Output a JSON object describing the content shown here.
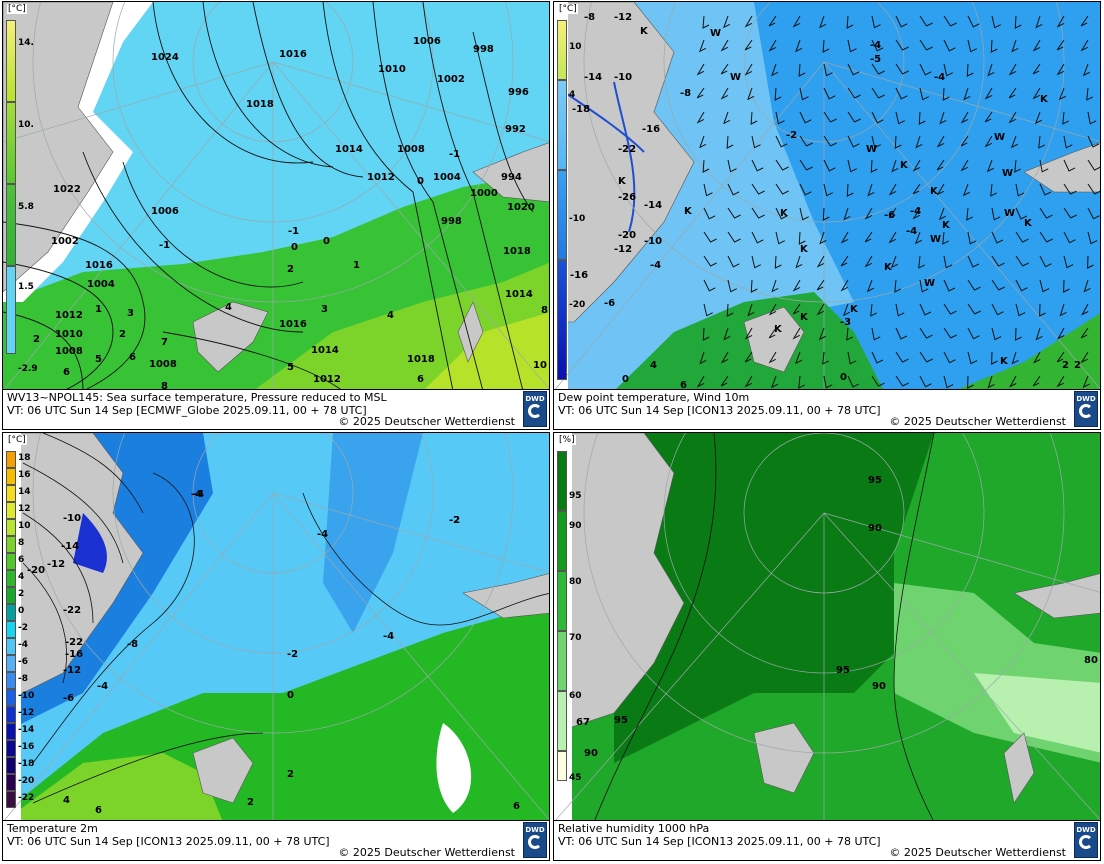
{
  "panels": [
    {
      "caption_line1": "WV13~NPOL145: Sea surface temperature,  Pressure reduced to MSL",
      "caption_line2": "VT: 06 UTC Sun  14 Sep [ECMWF_Globe 2025.09.11, 00 + 78 UTC]",
      "copyright": "© 2025 Deutscher Wetterdienst",
      "unit": "[°C]",
      "legend_labels": [
        "14.",
        "10.",
        "5.8",
        "1.5",
        "-2.9"
      ],
      "pressure_labels": [
        "1024",
        "1016",
        "1006",
        "998",
        "1010",
        "1002",
        "1018",
        "996",
        "992",
        "1014",
        "1008",
        "1012",
        "994",
        "1004",
        "1000",
        "1022",
        "1006",
        "998",
        "1020",
        "1002",
        "1018",
        "1016",
        "1004",
        "1014",
        "1012",
        "1016",
        "1010",
        "1014",
        "1008",
        "1018",
        "1012",
        "1008"
      ],
      "sst_labels": [
        "-1",
        "0",
        "-1",
        "0",
        "-1",
        "0",
        "1",
        "2",
        "1",
        "2",
        "3",
        "4",
        "4",
        "3",
        "5",
        "7",
        "6",
        "8",
        "10",
        "8",
        "6",
        "2",
        "5",
        "6"
      ]
    },
    {
      "caption_line1": "Dew point temperature, Wind 10m",
      "caption_line2": "VT: 06 UTC Sun  14 Sep [ICON13 2025.09.11,  00 + 78 UTC]",
      "copyright": "© 2025 Deutscher Wetterdienst",
      "unit": "[°C]",
      "legend_labels": [
        "10",
        "4",
        "-10",
        "-20"
      ],
      "dew_labels": [
        "-8",
        "-12",
        "-14",
        "-10",
        "-18",
        "-16",
        "-22",
        "-26",
        "-14",
        "-20",
        "-12",
        "-10",
        "-16",
        "-4",
        "-6",
        "-4",
        "-5",
        "-4",
        "-2",
        "-6",
        "-4",
        "-4",
        "-3",
        "-8",
        "2",
        "2",
        "0",
        "4",
        "6",
        "0"
      ],
      "K_marks": [
        "K",
        "K",
        "K",
        "K",
        "K",
        "K",
        "K",
        "K",
        "K",
        "K",
        "K",
        "K",
        "K",
        "K",
        "K"
      ],
      "W_marks": [
        "W",
        "W",
        "W",
        "W",
        "W",
        "W",
        "W",
        "W"
      ]
    },
    {
      "caption_line1": "Temperature 2m",
      "caption_line2": "VT: 06 UTC Sun  14 Sep [ICON13 2025.09.11,  00 + 78 UTC]",
      "copyright": "© 2025 Deutscher Wetterdienst",
      "unit": "[°C]",
      "legend_labels": [
        "18",
        "16",
        "14",
        "12",
        "10",
        "8",
        "6",
        "4",
        "2",
        "0",
        "-2",
        "-4",
        "-6",
        "-8",
        "-10",
        "-12",
        "-14",
        "-16",
        "-18",
        "-20",
        "-22"
      ],
      "temp_labels": [
        "-4",
        "-10",
        "-14",
        "-12",
        "-20",
        "-22",
        "-4",
        "-2",
        "-4",
        "-22",
        "-16",
        "-12",
        "-8",
        "-4",
        "-6",
        "-2",
        "0",
        "2",
        "4",
        "2",
        "6",
        "4",
        "6",
        "-2",
        "-4"
      ]
    },
    {
      "caption_line1": "Relative humidity 1000 hPa",
      "caption_line2": "VT: 06 UTC Sun  14 Sep [ICON13 2025.09.11,  00 + 78 UTC]",
      "copyright": "© 2025 Deutscher Wetterdienst",
      "unit": "[%]",
      "legend_labels": [
        "95",
        "90",
        "80",
        "70",
        "60",
        "45"
      ],
      "rh_labels": [
        "95",
        "90",
        "95",
        "90",
        "95",
        "67",
        "90",
        "80"
      ]
    }
  ],
  "logo_text": "DWD",
  "colors": {
    "land": "#c8c8c8",
    "sea_cold": "#5fd0f5",
    "sea_mid": "#7ddc3a",
    "sea_warm": "#b6e22a",
    "dew_blue": "#2f9ff0",
    "dew_light": "#6fc4f5",
    "t2_blue": "#1b7fe0",
    "t2_light": "#57c9f7",
    "t2_green": "#25b825",
    "rh_dark": "#0a7a14",
    "rh_mid": "#20a82a",
    "rh_light": "#9be79b"
  }
}
